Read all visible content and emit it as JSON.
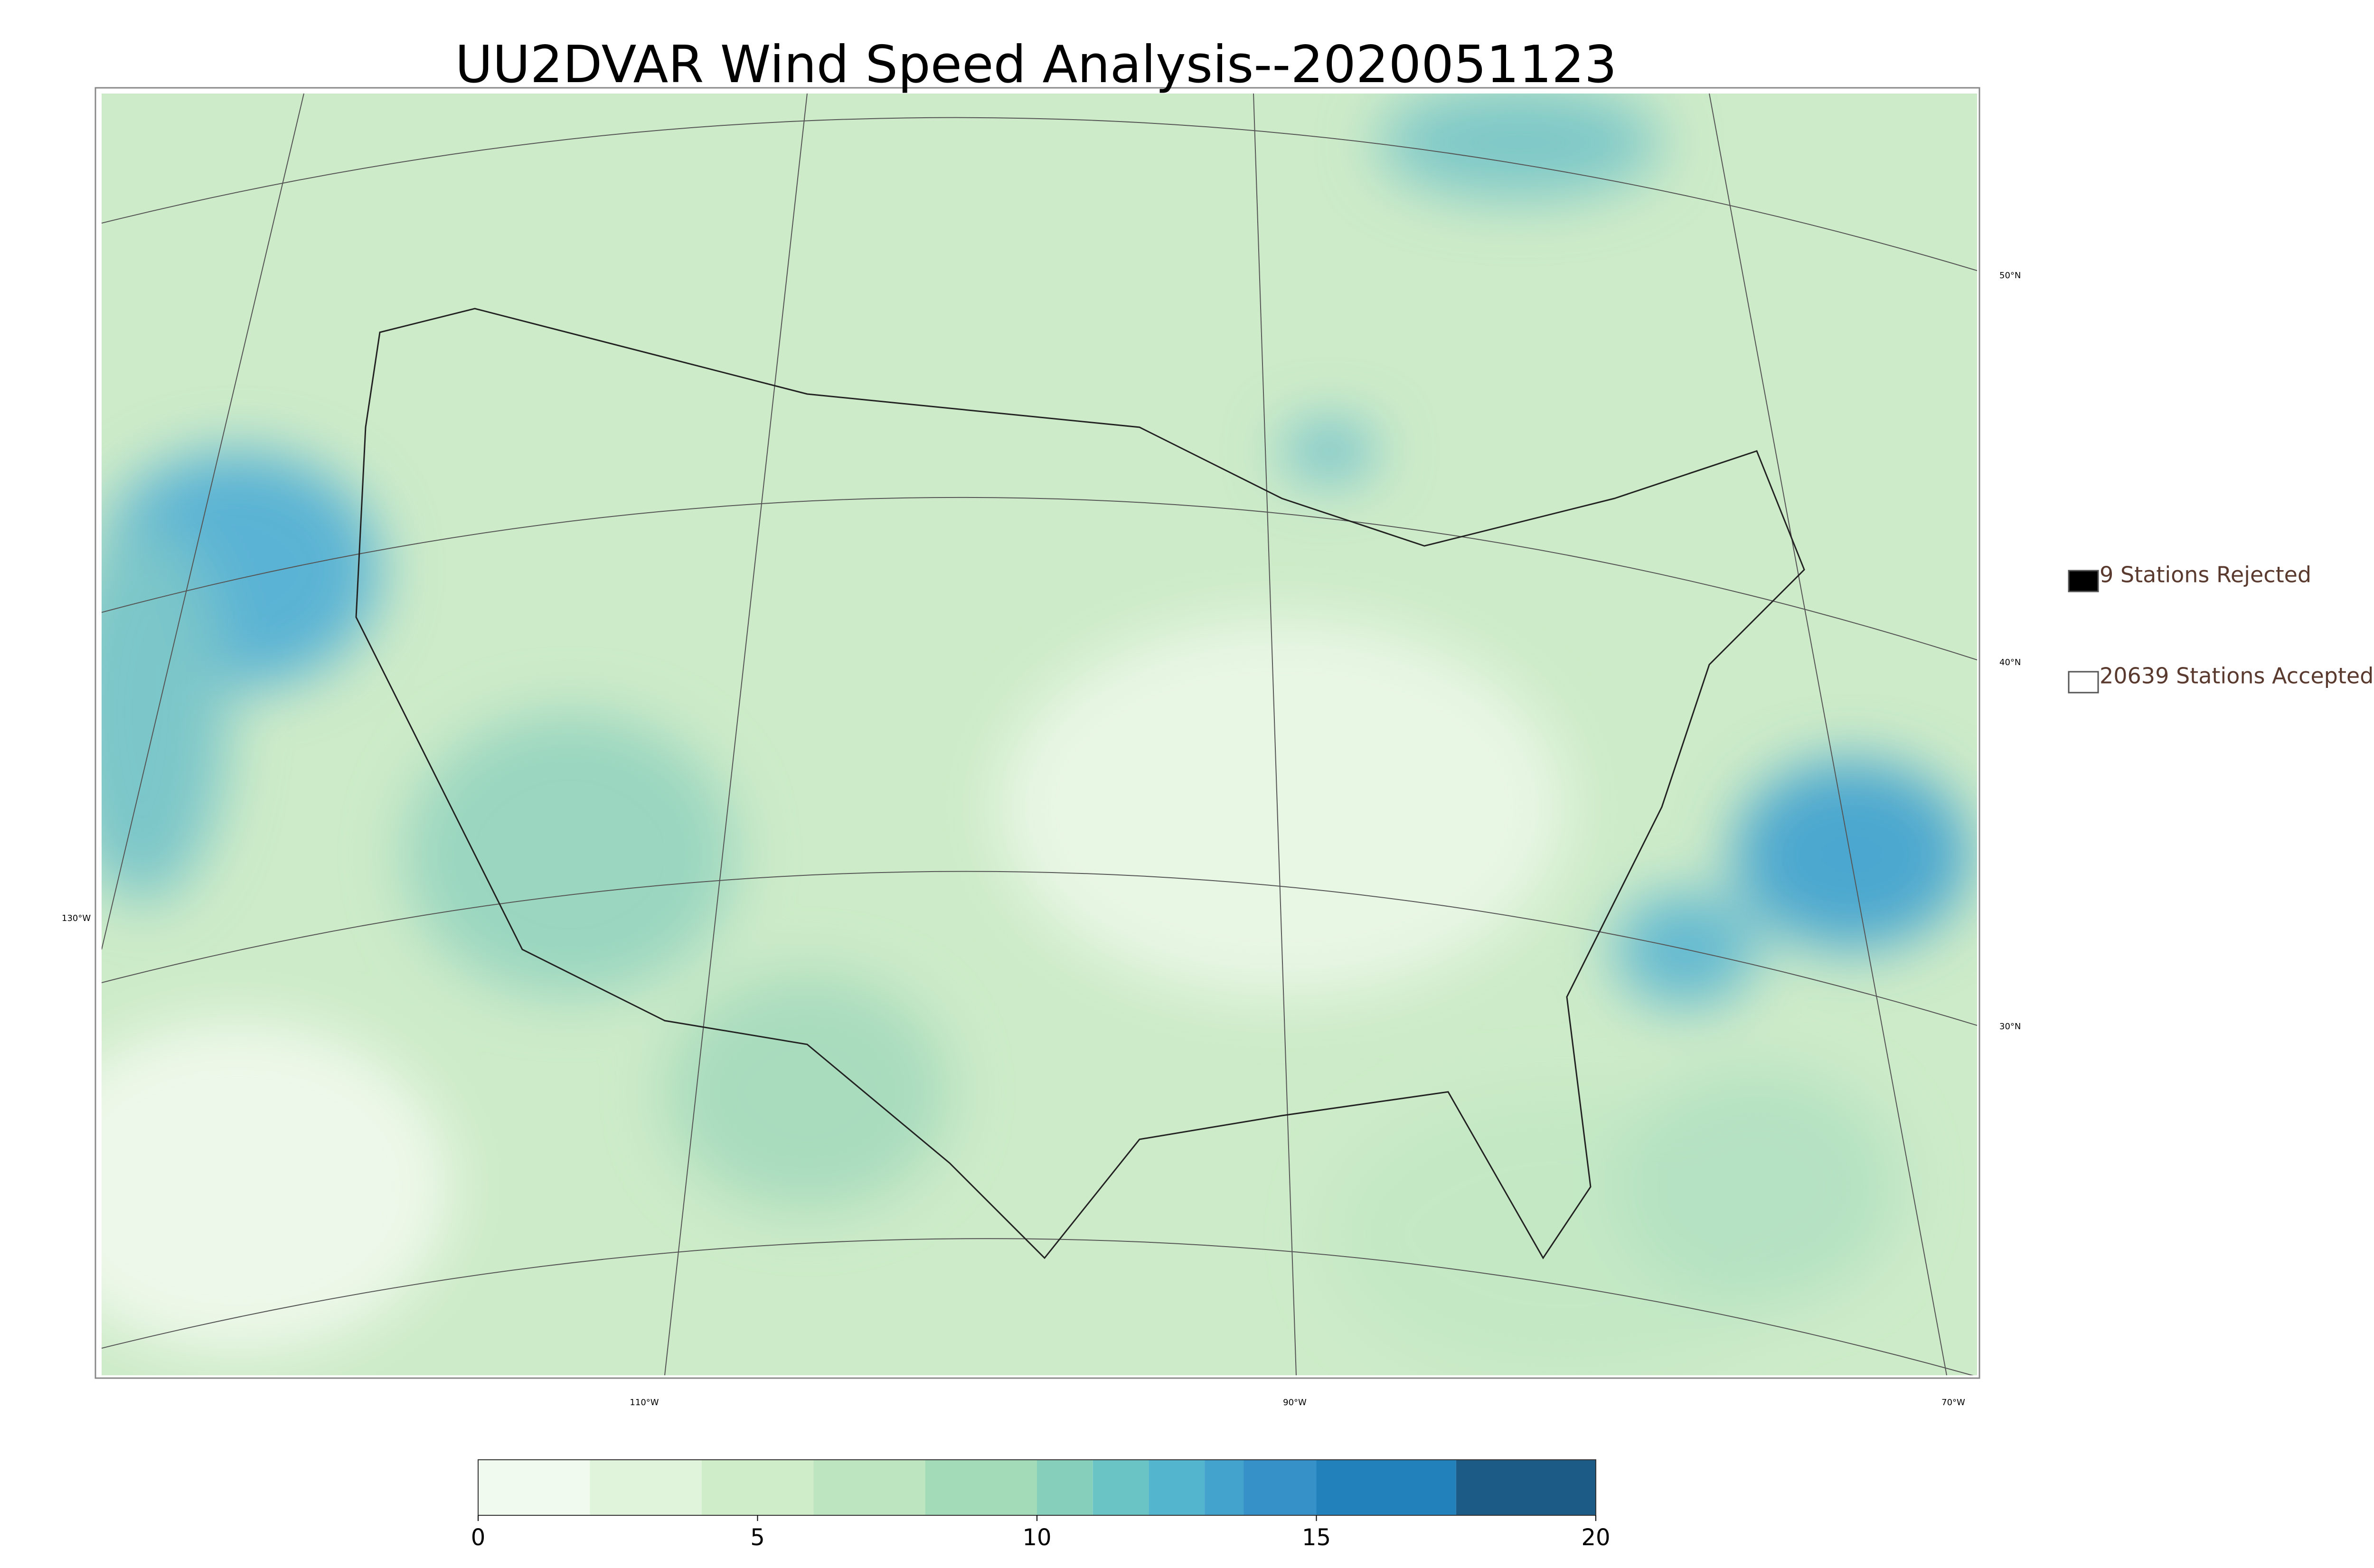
{
  "title": "UU2DVAR Wind Speed Analysis--2020051123",
  "legend": [
    {
      "label": "9 Stations Rejected",
      "color": "#000000"
    },
    {
      "label": "20639 Stations Accepted",
      "color": "#ffffff"
    }
  ],
  "graticule_labels": {
    "latitudes": [
      "50°N",
      "40°N",
      "30°N"
    ],
    "longitudes": [
      "130°W",
      "110°W",
      "90°W",
      "70°W"
    ]
  },
  "colorbar": {
    "lim": [
      0,
      20
    ],
    "ticks": [
      0,
      5,
      10,
      15,
      20
    ],
    "levels": [
      0,
      2,
      4,
      6,
      8,
      10,
      11,
      12,
      13,
      13.7,
      15,
      17.5,
      20
    ],
    "colors": [
      "#f1faee",
      "#e0f3db",
      "#d0edca",
      "#bce5c0",
      "#a3dbb8",
      "#86cfbb",
      "#6ac3c4",
      "#54b5cf",
      "#43a3cd",
      "#3591c7",
      "#2281bb",
      "#1c5b86"
    ]
  }
}
